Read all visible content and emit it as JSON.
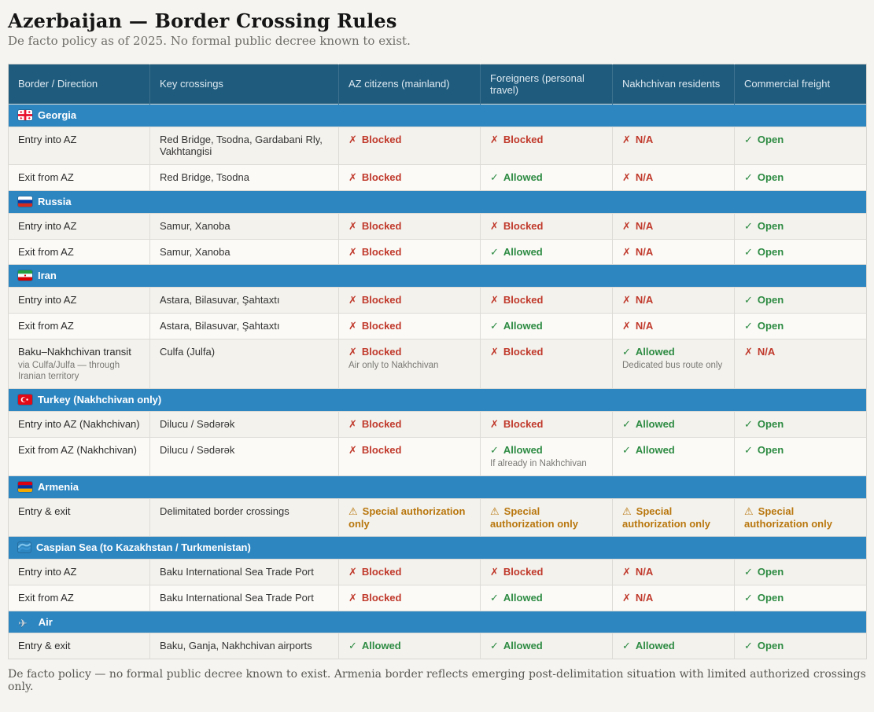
{
  "page": {
    "title": "Azerbaijan — Border Crossing Rules",
    "subtitle": "De facto policy as of 2025. No formal public decree known to exist.",
    "footnote": "De facto policy — no formal public decree known to exist. Armenia border reflects emerging post-delimitation situation with limited authorized crossings only."
  },
  "colors": {
    "header_bg": "#1f5b7d",
    "section_bg": "#2e86c1",
    "blocked_red": "#c0392b",
    "allowed_green": "#2d8b42",
    "special_orange": "#b9770e"
  },
  "icons": {
    "blocked": "✗",
    "na": "✗",
    "allowed": "✓",
    "open": "✓",
    "special": "⚠"
  },
  "table": {
    "columns": [
      "Border / Direction",
      "Key crossings",
      "AZ citizens (mainland)",
      "Foreigners (personal travel)",
      "Nakhchivan residents",
      "Commercial freight"
    ],
    "sections": [
      {
        "label": "Georgia",
        "icon": "georgia-flag",
        "rows": [
          {
            "direction": "Entry into AZ",
            "crossings": "Red Bridge, Tsodna, Gardabani Rly, Vakhtangisi",
            "cells": [
              {
                "status": "blocked",
                "text": "Blocked"
              },
              {
                "status": "blocked",
                "text": "Blocked"
              },
              {
                "status": "na",
                "text": "N/A"
              },
              {
                "status": "open",
                "text": "Open"
              }
            ]
          },
          {
            "direction": "Exit from AZ",
            "crossings": "Red Bridge, Tsodna",
            "cells": [
              {
                "status": "blocked",
                "text": "Blocked"
              },
              {
                "status": "allowed",
                "text": "Allowed"
              },
              {
                "status": "na",
                "text": "N/A"
              },
              {
                "status": "open",
                "text": "Open"
              }
            ]
          }
        ]
      },
      {
        "label": "Russia",
        "icon": "russia-flag",
        "rows": [
          {
            "direction": "Entry into AZ",
            "crossings": "Samur, Xanoba",
            "cells": [
              {
                "status": "blocked",
                "text": "Blocked"
              },
              {
                "status": "blocked",
                "text": "Blocked"
              },
              {
                "status": "na",
                "text": "N/A"
              },
              {
                "status": "open",
                "text": "Open"
              }
            ]
          },
          {
            "direction": "Exit from AZ",
            "crossings": "Samur, Xanoba",
            "cells": [
              {
                "status": "blocked",
                "text": "Blocked"
              },
              {
                "status": "allowed",
                "text": "Allowed"
              },
              {
                "status": "na",
                "text": "N/A"
              },
              {
                "status": "open",
                "text": "Open"
              }
            ]
          }
        ]
      },
      {
        "label": "Iran",
        "icon": "iran-flag",
        "rows": [
          {
            "direction": "Entry into AZ",
            "crossings": "Astara, Bilasuvar, Şahtaxtı",
            "cells": [
              {
                "status": "blocked",
                "text": "Blocked"
              },
              {
                "status": "blocked",
                "text": "Blocked"
              },
              {
                "status": "na",
                "text": "N/A"
              },
              {
                "status": "open",
                "text": "Open"
              }
            ]
          },
          {
            "direction": "Exit from AZ",
            "crossings": "Astara, Bilasuvar, Şahtaxtı",
            "cells": [
              {
                "status": "blocked",
                "text": "Blocked"
              },
              {
                "status": "allowed",
                "text": "Allowed"
              },
              {
                "status": "na",
                "text": "N/A"
              },
              {
                "status": "open",
                "text": "Open"
              }
            ]
          },
          {
            "direction": "Baku–Nakhchivan transit",
            "direction_note": "via Culfa/Julfa — through Iranian territory",
            "crossings": "Culfa (Julfa)",
            "cells": [
              {
                "status": "blocked",
                "text": "Blocked",
                "note": "Air only to Nakhchivan"
              },
              {
                "status": "blocked",
                "text": "Blocked"
              },
              {
                "status": "allowed",
                "text": "Allowed",
                "note": "Dedicated bus route only"
              },
              {
                "status": "na",
                "text": "N/A"
              }
            ]
          }
        ]
      },
      {
        "label": "Turkey (Nakhchivan only)",
        "icon": "turkey-flag",
        "rows": [
          {
            "direction": "Entry into AZ (Nakhchivan)",
            "crossings": "Dilucu / Sədərək",
            "cells": [
              {
                "status": "blocked",
                "text": "Blocked"
              },
              {
                "status": "blocked",
                "text": "Blocked"
              },
              {
                "status": "allowed",
                "text": "Allowed"
              },
              {
                "status": "open",
                "text": "Open"
              }
            ]
          },
          {
            "direction": "Exit from AZ (Nakhchivan)",
            "crossings": "Dilucu / Sədərək",
            "cells": [
              {
                "status": "blocked",
                "text": "Blocked"
              },
              {
                "status": "allowed",
                "text": "Allowed",
                "note": "If already in Nakhchivan"
              },
              {
                "status": "allowed",
                "text": "Allowed"
              },
              {
                "status": "open",
                "text": "Open"
              }
            ]
          }
        ]
      },
      {
        "label": "Armenia",
        "icon": "armenia-flag",
        "rows": [
          {
            "direction": "Entry & exit",
            "crossings": "Delimitated border crossings",
            "cells": [
              {
                "status": "special",
                "text": "Special authorization only"
              },
              {
                "status": "special",
                "text": "Special authorization only"
              },
              {
                "status": "special",
                "text": "Special authorization only"
              },
              {
                "status": "special",
                "text": "Special authorization only"
              }
            ]
          }
        ]
      },
      {
        "label": "Caspian Sea (to Kazakhstan / Turkmenistan)",
        "icon": "wave",
        "rows": [
          {
            "direction": "Entry into AZ",
            "crossings": "Baku International Sea Trade Port",
            "cells": [
              {
                "status": "blocked",
                "text": "Blocked"
              },
              {
                "status": "blocked",
                "text": "Blocked"
              },
              {
                "status": "na",
                "text": "N/A"
              },
              {
                "status": "open",
                "text": "Open"
              }
            ]
          },
          {
            "direction": "Exit from AZ",
            "crossings": "Baku International Sea Trade Port",
            "cells": [
              {
                "status": "blocked",
                "text": "Blocked"
              },
              {
                "status": "allowed",
                "text": "Allowed"
              },
              {
                "status": "na",
                "text": "N/A"
              },
              {
                "status": "open",
                "text": "Open"
              }
            ]
          }
        ]
      },
      {
        "label": "Air",
        "icon": "airplane",
        "rows": [
          {
            "direction": "Entry & exit",
            "crossings": "Baku, Ganja, Nakhchivan airports",
            "cells": [
              {
                "status": "allowed",
                "text": "Allowed"
              },
              {
                "status": "allowed",
                "text": "Allowed"
              },
              {
                "status": "allowed",
                "text": "Allowed"
              },
              {
                "status": "open",
                "text": "Open"
              }
            ]
          }
        ]
      }
    ]
  }
}
